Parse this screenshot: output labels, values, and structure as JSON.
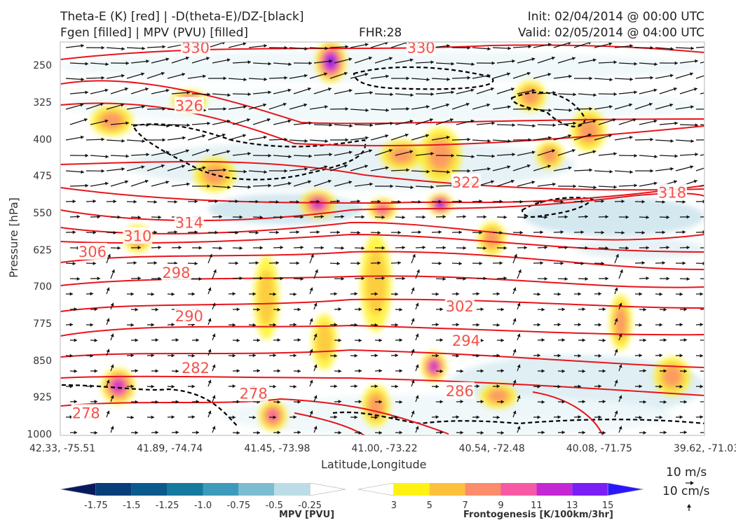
{
  "header": {
    "title_left_1": "Theta-E (K) [red] | -D(theta-E)/DZ-[black]",
    "title_left_2": "Fgen [filled] | MPV (PVU) [filled]",
    "fhr": "FHR:28",
    "init": "Init: 02/04/2014 @ 00:00 UTC",
    "valid": "Valid: 02/05/2014 @ 04:00 UTC"
  },
  "chart_data": {
    "type": "cross-section",
    "title": "Theta-E (K) [red] | -D(theta-E)/DZ-[black] / Fgen [filled] | MPV (PVU) [filled]",
    "xlabel": "Latitude,Longitude",
    "ylabel": "Pressure [hPa]",
    "xticks": [
      "42.33, -75.51",
      "41.89, -74.74",
      "41.45, -73.98",
      "41.00, -73.22",
      "40.54, -72.48",
      "40.08, -71.75",
      "39.62, -71.03"
    ],
    "yticks": [
      "250",
      "325",
      "400",
      "475",
      "550",
      "625",
      "700",
      "775",
      "850",
      "925",
      "1000"
    ],
    "ylim": [
      1000,
      200
    ],
    "yscale": "reversed",
    "theta_e_contours": [
      {
        "value": 330,
        "label": "330",
        "label_positions": [
          [
            0.21,
            212
          ],
          [
            0.56,
            212
          ]
        ]
      },
      {
        "value": 326,
        "label": "326",
        "label_positions": [
          [
            0.2,
            330
          ]
        ]
      },
      {
        "value": 322,
        "label": "322",
        "label_positions": [
          [
            0.63,
            486
          ]
        ]
      },
      {
        "value": 318,
        "label": "318",
        "label_positions": [
          [
            0.95,
            507
          ]
        ]
      },
      {
        "value": 314,
        "label": "314",
        "label_positions": [
          [
            0.2,
            568
          ]
        ]
      },
      {
        "value": 310,
        "label": "310",
        "label_positions": [
          [
            0.12,
            595
          ]
        ]
      },
      {
        "value": 306,
        "label": "306",
        "label_positions": [
          [
            0.05,
            627
          ]
        ]
      },
      {
        "value": 302,
        "label": "302",
        "label_positions": [
          [
            0.62,
            738
          ]
        ]
      },
      {
        "value": 298,
        "label": "298",
        "label_positions": [
          [
            0.18,
            670
          ]
        ]
      },
      {
        "value": 294,
        "label": "294",
        "label_positions": [
          [
            0.63,
            808
          ]
        ]
      },
      {
        "value": 290,
        "label": "290",
        "label_positions": [
          [
            0.2,
            758
          ]
        ]
      },
      {
        "value": 286,
        "label": "286",
        "label_positions": [
          [
            0.62,
            910
          ]
        ]
      },
      {
        "value": 282,
        "label": "282",
        "label_positions": [
          [
            0.21,
            863
          ]
        ]
      },
      {
        "value": 278,
        "label": "278",
        "label_positions": [
          [
            0.3,
            915
          ],
          [
            0.04,
            955
          ]
        ]
      }
    ],
    "colorbars": [
      {
        "label": "MPV [PVU]",
        "ticks": [
          "-1.75",
          "-1.5",
          "-1.25",
          "-1.0",
          "-0.75",
          "-0.5",
          "-0.25"
        ],
        "colors": [
          "#061b5e",
          "#083e7a",
          "#0b5a8d",
          "#16799e",
          "#3c9bba",
          "#7cbcd1",
          "#bcdde5",
          "#ffffff"
        ]
      },
      {
        "label": "Frontogenesis [K/100km/3hr]",
        "ticks": [
          "3",
          "5",
          "7",
          "9",
          "11",
          "13",
          "15"
        ],
        "colors": [
          "#ffffff",
          "#fff212",
          "#fcc03d",
          "#fb8c6c",
          "#f65aa4",
          "#c428d2",
          "#7a1ef6",
          "#2a17fe"
        ]
      }
    ],
    "wind_reference": {
      "u": "10 m/s",
      "w": "10 cm/s"
    }
  }
}
